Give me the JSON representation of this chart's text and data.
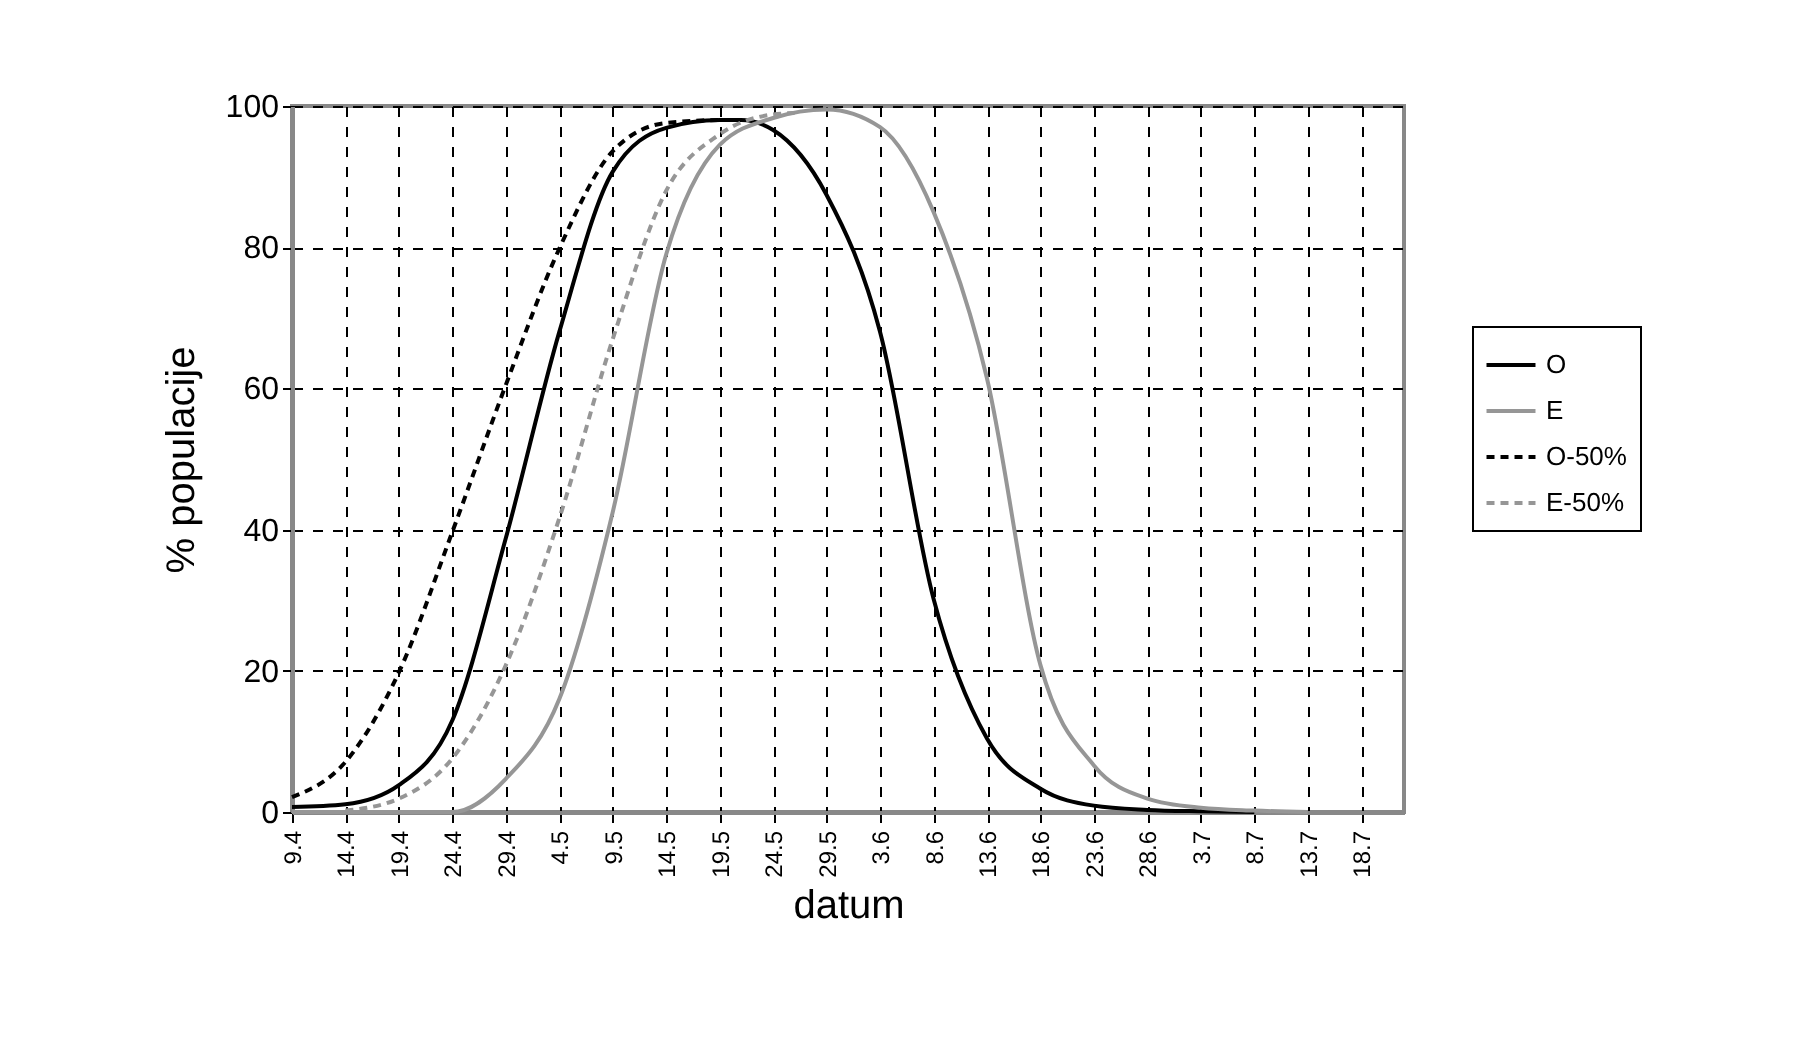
{
  "chart_data": {
    "type": "line",
    "xlabel": "datum",
    "ylabel": "% populacije",
    "xlim": [
      "--04-09",
      "--07-22"
    ],
    "ylim": [
      0,
      100
    ],
    "yticks": [
      0,
      20,
      40,
      60,
      80,
      100
    ],
    "xticks": [
      {
        "value": "--04-09",
        "label": "9.4"
      },
      {
        "value": "--04-14",
        "label": "14.4"
      },
      {
        "value": "--04-19",
        "label": "19.4"
      },
      {
        "value": "--04-24",
        "label": "24.4"
      },
      {
        "value": "--04-29",
        "label": "29.4"
      },
      {
        "value": "--05-04",
        "label": "4.5"
      },
      {
        "value": "--05-09",
        "label": "9.5"
      },
      {
        "value": "--05-14",
        "label": "14.5"
      },
      {
        "value": "--05-19",
        "label": "19.5"
      },
      {
        "value": "--05-24",
        "label": "24.5"
      },
      {
        "value": "--05-29",
        "label": "29.5"
      },
      {
        "value": "--06-03",
        "label": "3.6"
      },
      {
        "value": "--06-08",
        "label": "8.6"
      },
      {
        "value": "--06-13",
        "label": "13.6"
      },
      {
        "value": "--06-18",
        "label": "18.6"
      },
      {
        "value": "--06-23",
        "label": "23.6"
      },
      {
        "value": "--06-28",
        "label": "28.6"
      },
      {
        "value": "--07-03",
        "label": "3.7"
      },
      {
        "value": "--07-08",
        "label": "8.7"
      },
      {
        "value": "--07-13",
        "label": "13.7"
      },
      {
        "value": "--07-18",
        "label": "18.7"
      }
    ],
    "grid": true,
    "legend": "right",
    "marker": "none",
    "series": [
      {
        "name": "O",
        "color": "#000000",
        "line_style": "solid",
        "x": [
          "--04-09",
          "--04-14",
          "--04-19",
          "--04-24",
          "--04-29",
          "--05-04",
          "--05-09",
          "--05-14",
          "--05-19",
          "--05-21",
          "--05-24",
          "--05-29",
          "--06-03",
          "--06-08",
          "--06-13",
          "--06-18",
          "--06-23",
          "--06-28",
          "--07-03",
          "--07-08"
        ],
        "values": [
          0.7,
          1.1,
          3.8,
          13,
          38.8,
          68,
          90.7,
          96.9,
          98,
          98,
          96.6,
          87.4,
          68,
          30.2,
          10.4,
          3.3,
          0.9,
          0.3,
          0.1,
          0
        ]
      },
      {
        "name": "E",
        "color": "#969696",
        "line_style": "solid",
        "x": [
          "--04-09",
          "--04-14",
          "--04-19",
          "--04-24",
          "--04-29",
          "--05-04",
          "--05-09",
          "--05-14",
          "--05-19",
          "--05-24",
          "--05-29",
          "--06-03",
          "--06-08",
          "--06-13",
          "--06-18",
          "--06-23",
          "--06-28",
          "--07-03",
          "--07-08",
          "--07-13"
        ],
        "values": [
          0,
          0,
          0,
          0,
          4.7,
          16,
          42.5,
          79,
          94.5,
          98.3,
          99.5,
          97,
          85,
          61.4,
          20.8,
          6.6,
          1.9,
          0.6,
          0.2,
          0
        ]
      },
      {
        "name": "O-50%",
        "color": "#000000",
        "line_style": "dashed",
        "x": [
          "--04-09",
          "--04-14",
          "--04-19",
          "--04-24",
          "--04-29",
          "--05-04",
          "--05-09",
          "--05-14",
          "--05-19",
          "--05-21"
        ],
        "values": [
          2.1,
          7.1,
          19.8,
          39.7,
          60.5,
          79.8,
          93.6,
          97.6,
          98,
          98
        ]
      },
      {
        "name": "E-50%",
        "color": "#969696",
        "line_style": "dashed",
        "x": [
          "--04-14",
          "--04-19",
          "--04-24",
          "--04-29",
          "--05-04",
          "--05-09",
          "--05-14",
          "--05-19",
          "--05-24",
          "--05-26"
        ],
        "values": [
          0.2,
          1.9,
          7.6,
          20.8,
          41.6,
          67,
          88,
          96,
          98.8,
          99
        ]
      }
    ]
  }
}
